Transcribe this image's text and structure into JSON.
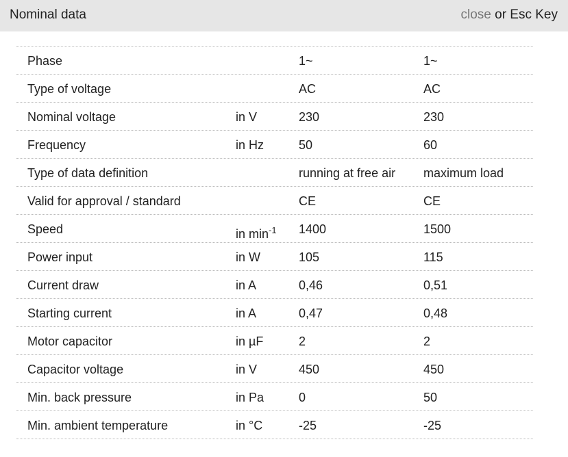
{
  "header": {
    "title": "Nominal data",
    "close": "close",
    "close_hint": "or Esc Key"
  },
  "table": {
    "rows": [
      {
        "label": "Phase",
        "values": [
          "1~",
          "1~"
        ]
      },
      {
        "label": "Type of voltage",
        "values": [
          "AC",
          "AC"
        ]
      },
      {
        "label": "Nominal voltage",
        "unit": "in V",
        "values": [
          "230",
          "230"
        ]
      },
      {
        "label": "Frequency",
        "unit": "in Hz",
        "values": [
          "50",
          "60"
        ]
      },
      {
        "label": "Type of data definition",
        "values": [
          "running at free air",
          "maximum load"
        ]
      },
      {
        "label": "Valid for approval / standard",
        "values": [
          "CE",
          "CE"
        ]
      },
      {
        "label": "Speed",
        "unit": "in min",
        "unit_sup": "-1",
        "values": [
          "1400",
          "1500"
        ]
      },
      {
        "label": "Power input",
        "unit": "in W",
        "values": [
          "105",
          "115"
        ]
      },
      {
        "label": "Current draw",
        "unit": "in A",
        "values": [
          "0,46",
          "0,51"
        ]
      },
      {
        "label": "Starting current",
        "unit": "in A",
        "values": [
          "0,47",
          "0,48"
        ]
      },
      {
        "label": "Motor capacitor",
        "unit": "in µF",
        "values": [
          "2",
          "2"
        ]
      },
      {
        "label": "Capacitor voltage",
        "unit": "in V",
        "values": [
          "450",
          "450"
        ]
      },
      {
        "label": "Min. back pressure",
        "unit": "in Pa",
        "values": [
          "0",
          "50"
        ]
      },
      {
        "label": "Min. ambient temperature",
        "unit": "in °C",
        "values": [
          "-25",
          "-25"
        ]
      }
    ]
  }
}
